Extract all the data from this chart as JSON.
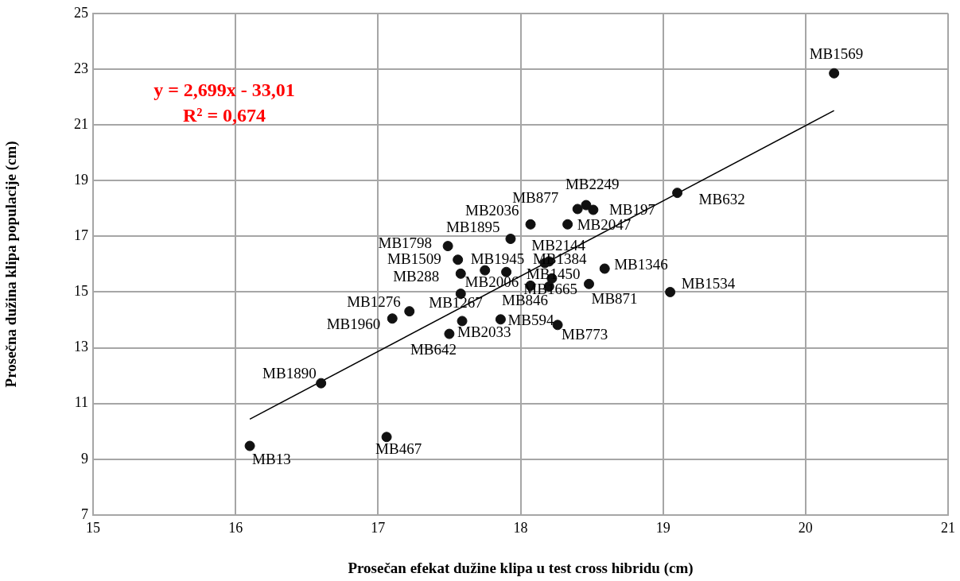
{
  "chart_data": {
    "type": "scatter",
    "xlabel": "Prosečan efekat dužine klipa u test cross hibridu (cm)",
    "ylabel": "Prosečna dužina klipa populacije (cm)",
    "xlim": [
      15,
      21
    ],
    "xticks": [
      15,
      16,
      17,
      18,
      19,
      20,
      21
    ],
    "ylim": [
      7,
      25
    ],
    "yticks": [
      7,
      9,
      11,
      13,
      15,
      17,
      19,
      21,
      23,
      25
    ],
    "grid": true,
    "legend": false,
    "marker": "circle",
    "series": [
      {
        "color": "#111111",
        "x": [
          20.2,
          19.1,
          19.05,
          16.1,
          17.06,
          16.6,
          17.1,
          17.22,
          17.5,
          17.59,
          17.86,
          18.26,
          17.58,
          17.58,
          17.56,
          17.49,
          17.93,
          18.07,
          18.4,
          18.46,
          18.51,
          18.33,
          17.75,
          17.9,
          18.2,
          18.17,
          18.22,
          18.2,
          18.07,
          18.48,
          18.59
        ],
        "values": [
          22.85,
          18.56,
          15.0,
          9.48,
          9.8,
          11.73,
          14.05,
          14.31,
          13.5,
          13.96,
          14.02,
          13.82,
          14.94,
          15.66,
          16.16,
          16.65,
          16.91,
          17.43,
          17.98,
          18.12,
          17.95,
          17.43,
          15.78,
          15.72,
          16.1,
          16.04,
          15.49,
          15.2,
          15.23,
          15.29,
          15.84
        ]
      },
      {
        "type": "line",
        "color": "#000000",
        "x": [
          16.1,
          20.2
        ],
        "values": [
          10.44,
          21.51
        ],
        "marker": "none"
      }
    ],
    "annotations": [
      "y = 2,699x - 33,01",
      "R² = 0,674",
      {
        "text": "MB1569",
        "x": 20.2,
        "y": 22.85
      },
      {
        "text": "MB632",
        "x": 19.1,
        "y": 18.56
      },
      {
        "text": "MB1534",
        "x": 19.05,
        "y": 15.0
      },
      {
        "text": "MB13",
        "x": 16.1,
        "y": 9.48
      },
      {
        "text": "MB467",
        "x": 17.06,
        "y": 9.8
      },
      {
        "text": "MB1890",
        "x": 16.6,
        "y": 11.73
      },
      {
        "text": "MB1960",
        "x": 17.1,
        "y": 14.05
      },
      {
        "text": "MB1276",
        "x": 17.22,
        "y": 14.31
      },
      {
        "text": "MB642",
        "x": 17.5,
        "y": 13.5
      },
      {
        "text": "MB2033",
        "x": 17.59,
        "y": 13.96
      },
      {
        "text": "MB594",
        "x": 17.86,
        "y": 14.02
      },
      {
        "text": "MB773",
        "x": 18.26,
        "y": 13.82
      },
      {
        "text": "MB1267",
        "x": 17.58,
        "y": 14.94
      },
      {
        "text": "MB288",
        "x": 17.58,
        "y": 15.66
      },
      {
        "text": "MB1509",
        "x": 17.56,
        "y": 16.16
      },
      {
        "text": "MB1798",
        "x": 17.49,
        "y": 16.65
      },
      {
        "text": "MB1895",
        "x": 17.93,
        "y": 16.91
      },
      {
        "text": "MB2036",
        "x": 18.07,
        "y": 17.43
      },
      {
        "text": "MB877",
        "x": 18.4,
        "y": 17.98
      },
      {
        "text": "MB2249",
        "x": 18.46,
        "y": 18.12
      },
      {
        "text": "MB197",
        "x": 18.51,
        "y": 17.95
      },
      {
        "text": "MB2047",
        "x": 18.33,
        "y": 17.43
      },
      {
        "text": "MB1945",
        "x": 17.75,
        "y": 15.78
      },
      {
        "text": "MB2006",
        "x": 17.9,
        "y": 15.72
      },
      {
        "text": "MB2144",
        "x": 18.2,
        "y": 16.1
      },
      {
        "text": "MB1384",
        "x": 18.17,
        "y": 16.04
      },
      {
        "text": "MB1450",
        "x": 18.22,
        "y": 15.49
      },
      {
        "text": "MB1665",
        "x": 18.2,
        "y": 15.2
      },
      {
        "text": "MB846",
        "x": 18.07,
        "y": 15.23
      },
      {
        "text": "MB871",
        "x": 18.48,
        "y": 15.29
      },
      {
        "text": "MB1346",
        "x": 18.59,
        "y": 15.84
      }
    ]
  }
}
